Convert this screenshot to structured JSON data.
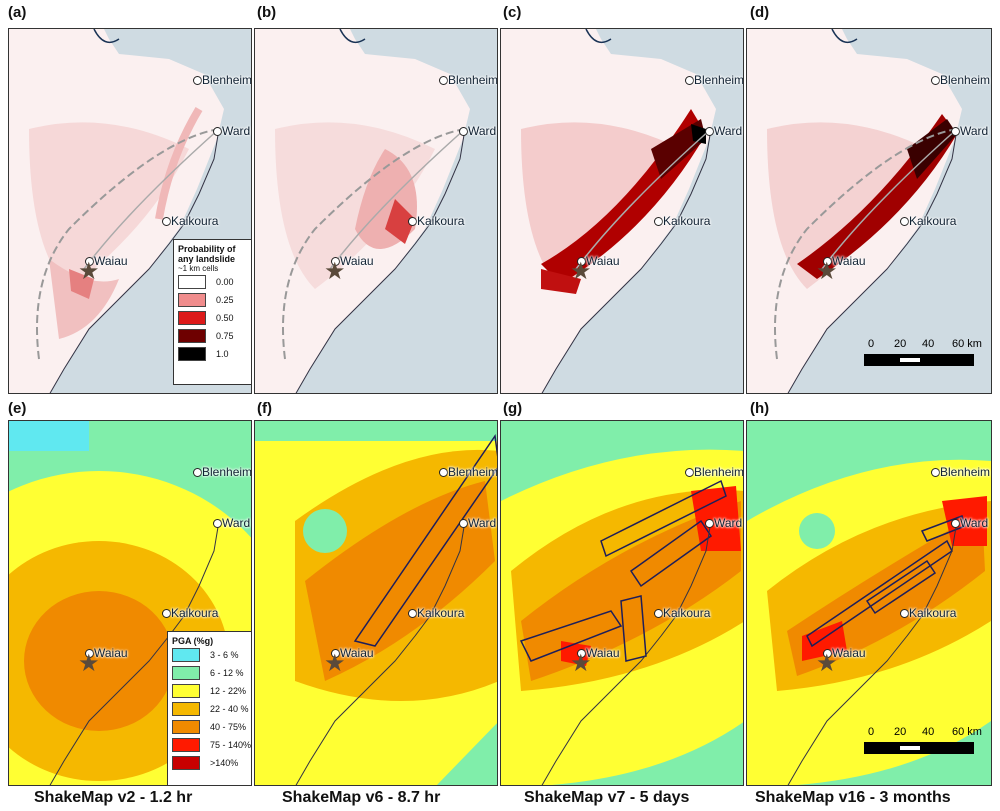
{
  "panel_labels": [
    "(a)",
    "(b)",
    "(c)",
    "(d)",
    "(e)",
    "(f)",
    "(g)",
    "(h)"
  ],
  "cities": {
    "blenheim": "Blenheim",
    "ward": "Ward",
    "kaikoura": "Kaikoura",
    "waiau": "Waiau"
  },
  "landslide_legend": {
    "title": "Probability of any landslide",
    "subtitle": "~1 km cells",
    "items": [
      {
        "label": "0.00",
        "color": "#ffffff"
      },
      {
        "label": "0.25",
        "color": "#f08c8c"
      },
      {
        "label": "0.50",
        "color": "#dd1a1a"
      },
      {
        "label": "0.75",
        "color": "#6e0000"
      },
      {
        "label": "1.0",
        "color": "#000000"
      }
    ]
  },
  "pga_legend": {
    "title": "PGA (%g)",
    "items": [
      {
        "label": "3 - 6 %",
        "color": "#60e8f0"
      },
      {
        "label": "6 - 12 %",
        "color": "#80eeaa"
      },
      {
        "label": "12 - 22%",
        "color": "#ffff33"
      },
      {
        "label": "22 - 40 %",
        "color": "#f5b800"
      },
      {
        "label": "40 - 75%",
        "color": "#f08a00"
      },
      {
        "label": "75 - 140%",
        "color": "#ff1a00"
      },
      {
        "label": ">140%",
        "color": "#c80000"
      }
    ]
  },
  "scale": {
    "ticks": [
      "0",
      "20",
      "40",
      "60 km"
    ]
  },
  "captions": [
    "ShakeMap v2 - 1.2 hr",
    "ShakeMap v6 - 8.7 hr",
    "ShakeMap v7 - 5 days",
    "ShakeMap v16 - 3 months"
  ],
  "colors": {
    "sea": "#cfdbe2",
    "land": "#fbf2f2",
    "border": "#333333"
  }
}
